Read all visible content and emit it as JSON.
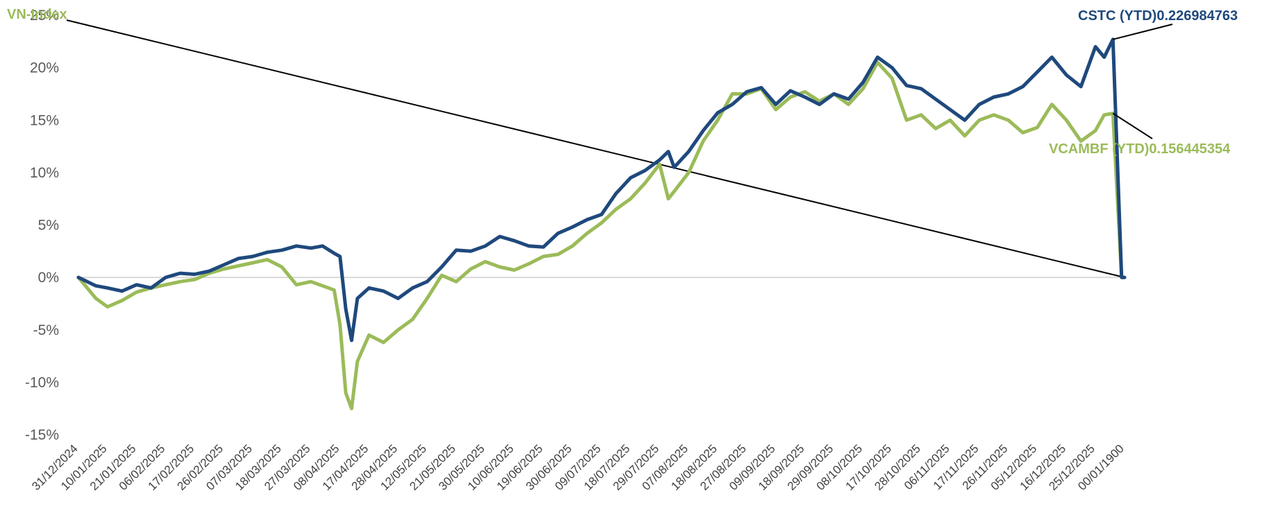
{
  "chart_data": {
    "type": "line",
    "title": "",
    "xlabel": "",
    "ylabel": "",
    "ylim": [
      -0.15,
      0.25
    ],
    "y_ticks": [
      -0.15,
      -0.1,
      -0.05,
      0,
      0.05,
      0.1,
      0.15,
      0.2,
      0.25
    ],
    "y_tick_labels": [
      "-15%",
      "-10%",
      "-5%",
      "0%",
      "5%",
      "10%",
      "15%",
      "20%",
      "25%"
    ],
    "grid": false,
    "x_tick_labels": [
      "31/12/2024",
      "10/01/2025",
      "21/01/2025",
      "06/02/2025",
      "17/02/2025",
      "26/02/2025",
      "07/03/2025",
      "18/03/2025",
      "27/03/2025",
      "08/04/2025",
      "17/04/2025",
      "28/04/2025",
      "12/05/2025",
      "21/05/2025",
      "30/05/2025",
      "10/06/2025",
      "19/06/2025",
      "30/06/2025",
      "09/07/2025",
      "18/07/2025",
      "29/07/2025",
      "07/08/2025",
      "18/08/2025",
      "27/08/2025",
      "09/09/2025",
      "18/09/2025",
      "29/09/2025",
      "08/10/2025",
      "17/10/2025",
      "28/10/2025",
      "06/11/2025",
      "17/11/2025",
      "26/11/2025",
      "05/12/2025",
      "16/12/2025",
      "25/12/2025",
      "00/01/1900"
    ],
    "x_index_max": 36,
    "series": [
      {
        "name": "CSTC (YTD)",
        "color": "#1F497D",
        "label_text": "CSTC (YTD)0.226984763",
        "x": [
          0,
          0.6,
          1,
          1.5,
          2,
          2.5,
          3,
          3.5,
          4,
          4.5,
          5,
          5.5,
          6,
          6.5,
          7,
          7.5,
          8,
          8.4,
          8.8,
          9,
          9.2,
          9.4,
          9.6,
          10,
          10.5,
          11,
          11.5,
          12,
          12.5,
          13,
          13.5,
          14,
          14.5,
          15,
          15.5,
          16,
          16.5,
          17,
          17.5,
          18,
          18.5,
          19,
          19.5,
          20,
          20.3,
          20.5,
          21,
          21.5,
          22,
          22.5,
          23,
          23.5,
          24,
          24.5,
          25,
          25.5,
          26,
          26.5,
          27,
          27.5,
          28,
          28.5,
          29,
          29.5,
          30,
          30.5,
          31,
          31.5,
          32,
          32.5,
          33,
          33.5,
          34,
          34.5,
          35,
          35.3,
          35.6,
          35.9,
          36
        ],
        "y": [
          0,
          -0.008,
          -0.01,
          -0.013,
          -0.007,
          -0.01,
          0,
          0.004,
          0.003,
          0.006,
          0.012,
          0.018,
          0.02,
          0.024,
          0.026,
          0.03,
          0.028,
          0.03,
          0.023,
          0.02,
          -0.03,
          -0.06,
          -0.02,
          -0.01,
          -0.013,
          -0.02,
          -0.01,
          -0.004,
          0.01,
          0.026,
          0.025,
          0.03,
          0.039,
          0.035,
          0.03,
          0.029,
          0.042,
          0.048,
          0.055,
          0.06,
          0.08,
          0.095,
          0.102,
          0.112,
          0.12,
          0.105,
          0.12,
          0.14,
          0.157,
          0.165,
          0.177,
          0.181,
          0.165,
          0.178,
          0.172,
          0.165,
          0.175,
          0.17,
          0.186,
          0.21,
          0.2,
          0.183,
          0.18,
          0.17,
          0.16,
          0.15,
          0.165,
          0.172,
          0.175,
          0.182,
          0.196,
          0.21,
          0.193,
          0.182,
          0.22,
          0.21,
          0.226984763,
          0,
          0
        ]
      },
      {
        "name": "VCAMBF (YTD)",
        "color": "#9BBB59",
        "label_text": "VCAMBF (YTD)0.156445354",
        "x": [
          0,
          0.6,
          1,
          1.5,
          2,
          2.5,
          3,
          3.5,
          4,
          4.5,
          5,
          5.5,
          6,
          6.5,
          7,
          7.5,
          8,
          8.4,
          8.8,
          9,
          9.2,
          9.4,
          9.6,
          10,
          10.5,
          11,
          11.5,
          12,
          12.5,
          13,
          13.5,
          14,
          14.5,
          15,
          15.5,
          16,
          16.5,
          17,
          17.5,
          18,
          18.5,
          19,
          19.5,
          20,
          20.3,
          20.5,
          21,
          21.5,
          22,
          22.5,
          23,
          23.5,
          24,
          24.5,
          25,
          25.5,
          26,
          26.5,
          27,
          27.5,
          28,
          28.5,
          29,
          29.5,
          30,
          30.5,
          31,
          31.5,
          32,
          32.5,
          33,
          33.5,
          34,
          34.5,
          35,
          35.3,
          35.6,
          35.9,
          36
        ],
        "y": [
          0,
          -0.02,
          -0.028,
          -0.022,
          -0.014,
          -0.01,
          -0.007,
          -0.004,
          -0.002,
          0.004,
          0.008,
          0.011,
          0.014,
          0.017,
          0.01,
          -0.007,
          -0.004,
          -0.008,
          -0.012,
          -0.045,
          -0.11,
          -0.125,
          -0.08,
          -0.055,
          -0.062,
          -0.05,
          -0.04,
          -0.02,
          0.002,
          -0.004,
          0.008,
          0.015,
          0.01,
          0.007,
          0.013,
          0.02,
          0.022,
          0.03,
          0.042,
          0.052,
          0.065,
          0.075,
          0.09,
          0.108,
          0.075,
          0.082,
          0.1,
          0.13,
          0.15,
          0.175,
          0.175,
          0.18,
          0.16,
          0.172,
          0.177,
          0.168,
          0.175,
          0.165,
          0.18,
          0.205,
          0.19,
          0.15,
          0.155,
          0.142,
          0.15,
          0.135,
          0.15,
          0.155,
          0.15,
          0.138,
          0.143,
          0.165,
          0.15,
          0.13,
          0.14,
          0.155,
          0.156445354,
          0,
          0
        ]
      }
    ]
  },
  "labels": {
    "top_left": "VN-Index"
  }
}
